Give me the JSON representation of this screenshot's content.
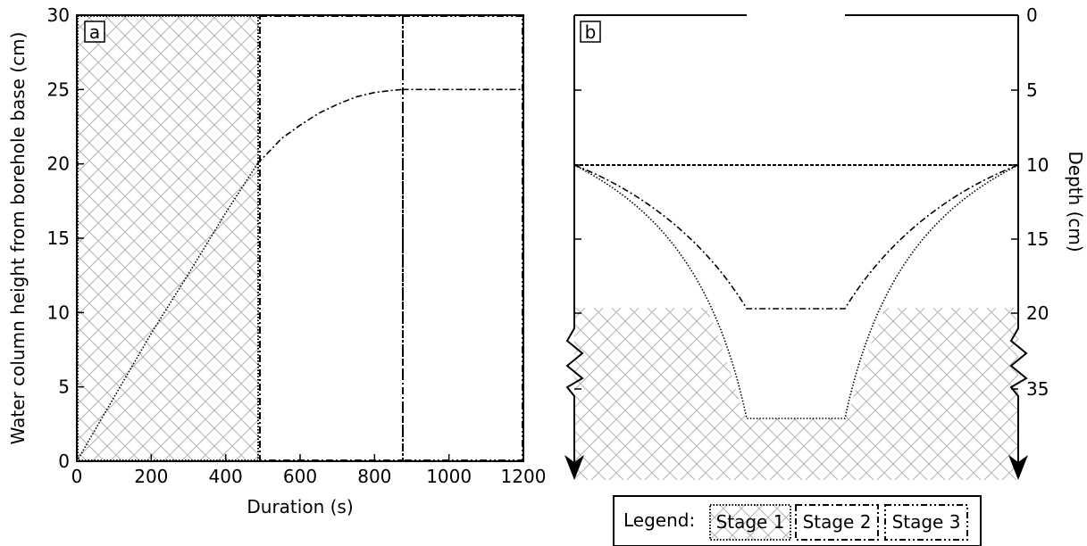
{
  "chart_data": [
    {
      "panel": "a",
      "type": "line",
      "xlabel": "Duration (s)",
      "ylabel": "Water column height from borehole base (cm)",
      "xlim": [
        0,
        1200
      ],
      "ylim": [
        0,
        30
      ],
      "xticks": [
        "0",
        "200",
        "400",
        "600",
        "800",
        "1000",
        "1200"
      ],
      "yticks": [
        "0",
        "5",
        "10",
        "15",
        "20",
        "25",
        "30"
      ],
      "stage_boundaries": [
        485,
        875
      ],
      "series": [
        {
          "stage": 1,
          "style": "dotted",
          "x": [
            0,
            100,
            200,
            300,
            400,
            485
          ],
          "y": [
            0,
            4.3,
            8.6,
            12.6,
            16.7,
            20
          ]
        },
        {
          "stage": 2,
          "style": "dash-dot",
          "x": [
            485,
            550,
            600,
            650,
            700,
            750,
            800,
            850,
            875
          ],
          "y": [
            20,
            21.7,
            22.6,
            23.4,
            24.0,
            24.5,
            24.8,
            24.95,
            25
          ]
        },
        {
          "stage": 3,
          "style": "dash-dot",
          "x": [
            875,
            1200
          ],
          "y": [
            25,
            25
          ]
        }
      ]
    },
    {
      "panel": "b",
      "type": "diagram",
      "ylabel": "Depth (cm)",
      "yticks": [
        "0",
        "5",
        "10",
        "15",
        "20",
        "35"
      ],
      "water_table_depth": 10,
      "stage2_bottom_depth": 20,
      "stage1_bottom_depth": 35
    }
  ],
  "legend": {
    "title": "Legend:",
    "items": [
      "Stage 1",
      "Stage 2",
      "Stage 3"
    ]
  },
  "labels": {
    "panel_a": "a",
    "panel_b": "b"
  }
}
